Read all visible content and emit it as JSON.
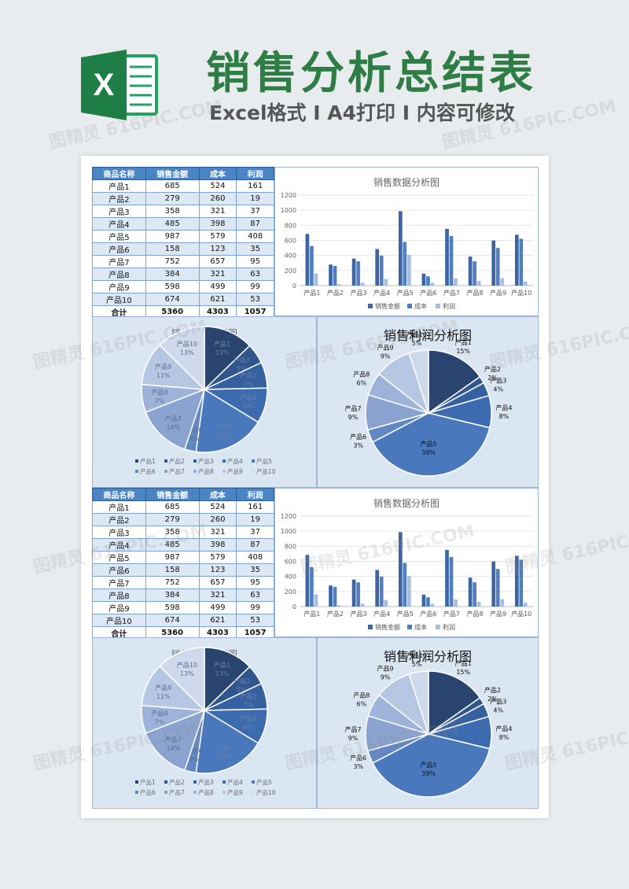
{
  "header": {
    "title": "销售分析总结表",
    "subtitle": "Excel格式 I A4打印 I 内容可修改",
    "logo_letter": "X"
  },
  "colors": {
    "title_green": "#2e7d44",
    "table_header": "#4a84c4",
    "series_sales": "#3d65a0",
    "series_cost": "#4f7fc0",
    "series_profit": "#a9bde0"
  },
  "table": {
    "headers": [
      "商品名称",
      "销售金额",
      "成本",
      "利润"
    ],
    "rows": [
      [
        "产品1",
        "685",
        "524",
        "161"
      ],
      [
        "产品2",
        "279",
        "260",
        "19"
      ],
      [
        "产品3",
        "358",
        "321",
        "37"
      ],
      [
        "产品4",
        "485",
        "398",
        "87"
      ],
      [
        "产品5",
        "987",
        "579",
        "408"
      ],
      [
        "产品6",
        "158",
        "123",
        "35"
      ],
      [
        "产品7",
        "752",
        "657",
        "95"
      ],
      [
        "产品8",
        "384",
        "321",
        "63"
      ],
      [
        "产品9",
        "598",
        "499",
        "99"
      ],
      [
        "产品10",
        "674",
        "621",
        "53"
      ]
    ],
    "total": [
      "合计",
      "5360",
      "4303",
      "1057"
    ]
  },
  "chart_data": [
    {
      "type": "bar",
      "title": "销售数据分析图",
      "categories": [
        "产品1",
        "产品2",
        "产品3",
        "产品4",
        "产品5",
        "产品6",
        "产品7",
        "产品8",
        "产品9",
        "产品10"
      ],
      "series": [
        {
          "name": "销售金额",
          "values": [
            685,
            279,
            358,
            485,
            987,
            158,
            752,
            384,
            598,
            674
          ]
        },
        {
          "name": "成本",
          "values": [
            524,
            260,
            321,
            398,
            579,
            123,
            657,
            321,
            499,
            621
          ]
        },
        {
          "name": "利润",
          "values": [
            161,
            19,
            37,
            87,
            408,
            35,
            95,
            63,
            99,
            53
          ]
        }
      ],
      "ylim": [
        0,
        1200
      ],
      "yticks": [
        0,
        200,
        400,
        600,
        800,
        1000,
        1200
      ],
      "legend": "bottom"
    },
    {
      "type": "pie",
      "title": "销售金额分析图",
      "categories": [
        "产品1",
        "产品2",
        "产品3",
        "产品4",
        "产品5",
        "产品6",
        "产品7",
        "产品8",
        "产品9",
        "产品10"
      ],
      "values": [
        685,
        279,
        358,
        485,
        987,
        158,
        752,
        384,
        598,
        674
      ],
      "labels": [
        "13%",
        "5%",
        "7%",
        "9%",
        "18%",
        "3%",
        "14%",
        "7%",
        "11%",
        "13%"
      ],
      "legend": "bottom"
    },
    {
      "type": "pie",
      "title": "销售利润分析图",
      "categories": [
        "产品1",
        "产品2",
        "产品3",
        "产品4",
        "产品5",
        "产品6",
        "产品7",
        "产品8",
        "产品9",
        "产品10"
      ],
      "values": [
        161,
        19,
        37,
        87,
        408,
        35,
        95,
        63,
        99,
        53
      ],
      "labels": [
        "15%",
        "2%",
        "4%",
        "8%",
        "39%",
        "3%",
        "9%",
        "6%",
        "9%",
        "5%"
      ]
    }
  ],
  "watermark_text": "图精灵 616PIC.COM"
}
